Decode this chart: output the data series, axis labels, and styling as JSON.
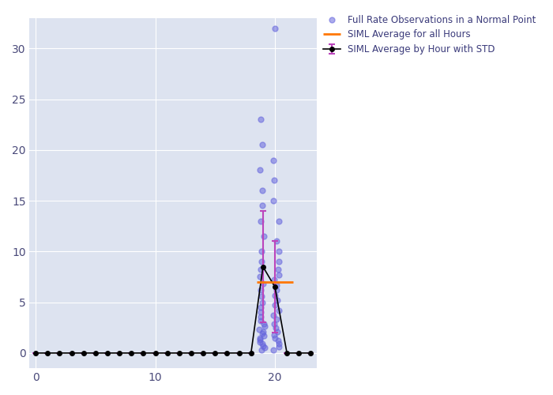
{
  "bg_color": "#dde3f0",
  "fig_bg_color": "#ffffff",
  "scatter_color": "#6666dd",
  "scatter_alpha": 0.55,
  "scatter_size": 25,
  "line_color": "#000000",
  "line_marker": "o",
  "line_marker_size": 4,
  "errorbar_color": "#bb44bb",
  "hline_color": "#ff7700",
  "hline_y": 7.0,
  "hline_xmin": 18.5,
  "hline_xmax": 21.5,
  "xlim": [
    -0.5,
    23.5
  ],
  "ylim": [
    -1.5,
    33
  ],
  "xticks": [
    0,
    10,
    20
  ],
  "yticks": [
    0,
    5,
    10,
    15,
    20,
    25,
    30
  ],
  "legend_labels": [
    "Full Rate Observations in a Normal Point",
    "SIML Average by Hour with STD",
    "SIML Average for all Hours"
  ],
  "avg_hours": [
    0,
    1,
    2,
    3,
    4,
    5,
    6,
    7,
    8,
    9,
    10,
    11,
    12,
    13,
    14,
    15,
    16,
    17,
    18,
    19,
    20,
    21,
    22,
    23
  ],
  "avg_values": [
    0,
    0,
    0,
    0,
    0,
    0,
    0,
    0,
    0,
    0,
    0,
    0,
    0,
    0,
    0,
    0,
    0,
    0,
    0,
    8.5,
    6.5,
    0,
    0,
    0
  ],
  "avg_stds": [
    0.01,
    0.01,
    0.01,
    0.01,
    0.01,
    0.01,
    0.01,
    0.01,
    0.01,
    0.01,
    0.01,
    0.01,
    0.01,
    0.01,
    0.01,
    0.01,
    0.01,
    0.01,
    0.01,
    5.5,
    4.5,
    0.01,
    0.01,
    0.01
  ],
  "y19": [
    0.3,
    0.5,
    0.7,
    0.9,
    1.1,
    1.3,
    1.5,
    1.7,
    1.9,
    2.1,
    2.3,
    2.6,
    2.9,
    3.2,
    3.6,
    4.0,
    4.5,
    5.0,
    5.6,
    6.2,
    6.8,
    7.5,
    8.2,
    9.0,
    10.0,
    11.5,
    13.0,
    14.5,
    16.0,
    18.0,
    20.5,
    23.0
  ],
  "y20": [
    0.3,
    0.6,
    0.9,
    1.2,
    1.5,
    1.8,
    2.1,
    2.5,
    2.9,
    3.3,
    3.7,
    4.2,
    4.7,
    5.2,
    5.7,
    6.2,
    6.7,
    7.2,
    7.7,
    8.2,
    9.0,
    10.0,
    11.0,
    13.0,
    15.0,
    17.0,
    19.0,
    32.0
  ]
}
